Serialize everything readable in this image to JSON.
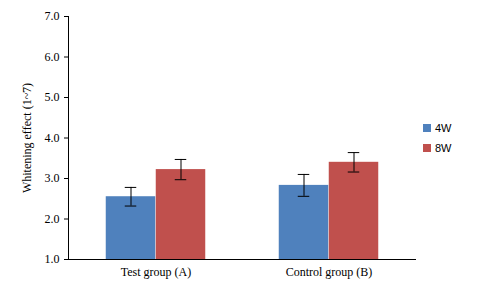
{
  "chart_data": {
    "type": "bar",
    "categories": [
      "Test group (A)",
      "Control group (B)"
    ],
    "series": [
      {
        "name": "4W",
        "color": "#4F81BD",
        "values": [
          2.55,
          2.83
        ],
        "errors": [
          0.23,
          0.27
        ]
      },
      {
        "name": "8W",
        "color": "#C0504D",
        "values": [
          3.22,
          3.4
        ],
        "errors": [
          0.25,
          0.24
        ]
      }
    ],
    "y_label": "Whitening effect (1~7)",
    "ylim": [
      1,
      7
    ],
    "yticks": [
      {
        "value": 1,
        "label": "1.0"
      },
      {
        "value": 2,
        "label": "2.0"
      },
      {
        "value": 3,
        "label": "3.0"
      },
      {
        "value": 4,
        "label": "4.0"
      },
      {
        "value": 5,
        "label": "5.0"
      },
      {
        "value": 6,
        "label": "6.0"
      },
      {
        "value": 7,
        "label": "7.0"
      }
    ],
    "grid": false,
    "legend": "right"
  }
}
